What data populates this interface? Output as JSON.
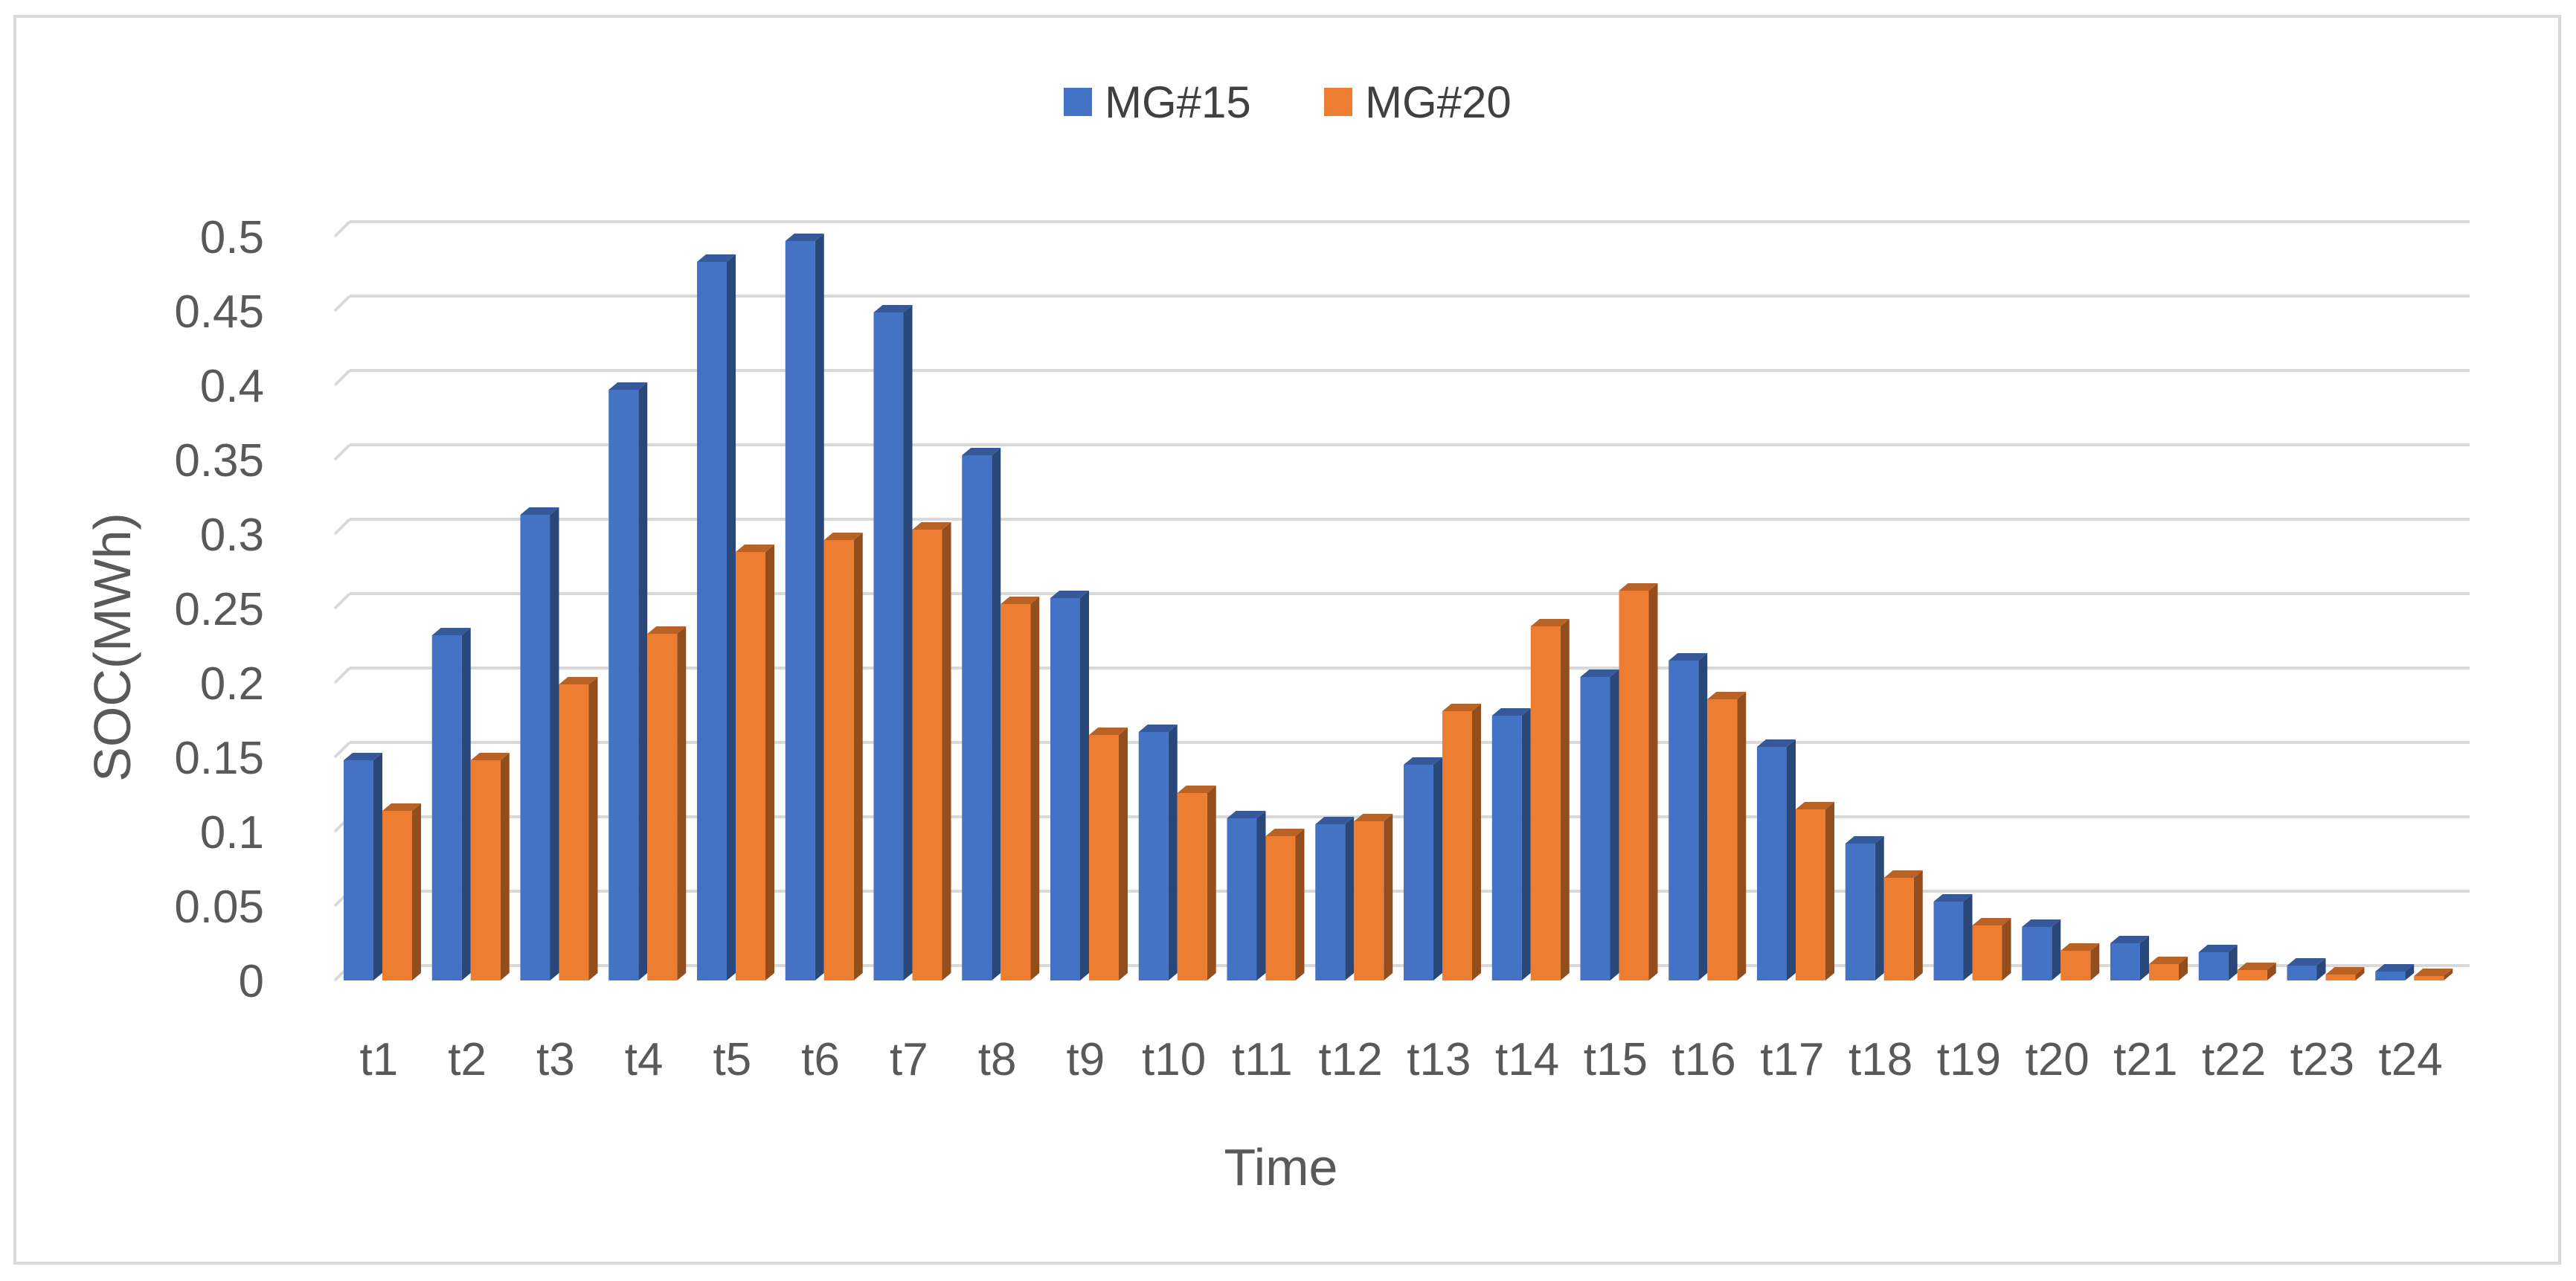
{
  "chart_data": {
    "type": "bar",
    "xlabel": "Time",
    "ylabel": "SOC(MWh)",
    "ylim": [
      0,
      0.5
    ],
    "yticks": [
      "0",
      "0.05",
      "0.1",
      "0.15",
      "0.2",
      "0.25",
      "0.3",
      "0.35",
      "0.4",
      "0.45",
      "0.5"
    ],
    "grid": true,
    "legend_position": "top-center",
    "categories": [
      "t1",
      "t2",
      "t3",
      "t4",
      "t5",
      "t6",
      "t7",
      "t8",
      "t9",
      "t10",
      "t11",
      "t12",
      "t13",
      "t14",
      "t15",
      "t16",
      "t17",
      "t18",
      "t19",
      "t20",
      "t21",
      "t22",
      "t23",
      "t24"
    ],
    "series": [
      {
        "name": "MG#15",
        "color": "#4472c4",
        "values": [
          0.148,
          0.232,
          0.313,
          0.397,
          0.483,
          0.497,
          0.449,
          0.353,
          0.257,
          0.167,
          0.109,
          0.105,
          0.145,
          0.178,
          0.204,
          0.215,
          0.157,
          0.092,
          0.053,
          0.036,
          0.025,
          0.019,
          0.01,
          0.006
        ]
      },
      {
        "name": "MG#20",
        "color": "#ed7d31",
        "values": [
          0.114,
          0.148,
          0.199,
          0.233,
          0.288,
          0.296,
          0.303,
          0.253,
          0.165,
          0.126,
          0.097,
          0.107,
          0.181,
          0.238,
          0.262,
          0.189,
          0.115,
          0.069,
          0.037,
          0.02,
          0.011,
          0.007,
          0.004,
          0.003
        ]
      }
    ]
  }
}
